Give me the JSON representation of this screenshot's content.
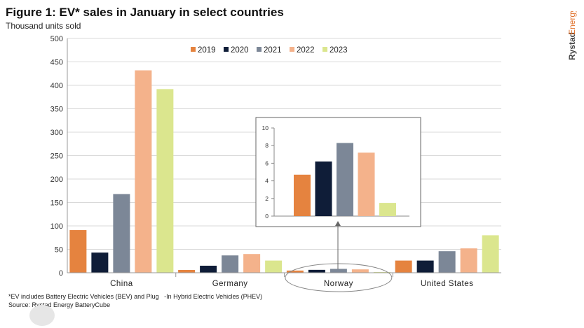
{
  "header": {
    "title": "Figure 1: EV* sales in January in select countries",
    "subtitle": "Thousand units sold"
  },
  "brand": {
    "name": "RystadEnergy",
    "prefix": "Rystad",
    "suffix": "Energy",
    "color": "#e0702a"
  },
  "footnotes": {
    "line1": "*EV includes Battery Electric Vehicles (BEV) and Plug   -In Hybrid Electric Vehicles (PHEV)",
    "line2": "Source: Rystad Energy BatteryCube"
  },
  "colors": {
    "2019": "#e5833f",
    "2020": "#0f1d38",
    "2021": "#7c8797",
    "2022": "#f4b28b",
    "2023": "#dbe68e",
    "grid": "#d9d9d9",
    "axis": "#9a9a9a"
  },
  "chart_data": [
    {
      "type": "bar",
      "categories": [
        "China",
        "Germany",
        "Norway",
        "United States"
      ],
      "series": [
        {
          "name": "2019",
          "values": [
            91,
            6,
            4.7,
            26
          ]
        },
        {
          "name": "2020",
          "values": [
            43,
            15,
            6.2,
            26
          ]
        },
        {
          "name": "2021",
          "values": [
            168,
            37,
            8.3,
            46
          ]
        },
        {
          "name": "2022",
          "values": [
            432,
            40,
            7.2,
            52
          ]
        },
        {
          "name": "2023",
          "values": [
            392,
            26,
            1.5,
            80
          ]
        }
      ],
      "ylim": [
        0,
        500
      ],
      "yticks": [
        0,
        50,
        100,
        150,
        200,
        250,
        300,
        350,
        400,
        450,
        500
      ],
      "grid": true,
      "legend": "top-center",
      "highlight": "Norway"
    },
    {
      "type": "bar",
      "inset": true,
      "category": "Norway",
      "series": [
        {
          "name": "2019",
          "value": 4.7
        },
        {
          "name": "2020",
          "value": 6.2
        },
        {
          "name": "2021",
          "value": 8.3
        },
        {
          "name": "2022",
          "value": 7.2
        },
        {
          "name": "2023",
          "value": 1.5
        }
      ],
      "ylim": [
        0,
        10
      ],
      "yticks": [
        0,
        2,
        4,
        6,
        8,
        10
      ],
      "grid": false
    }
  ]
}
